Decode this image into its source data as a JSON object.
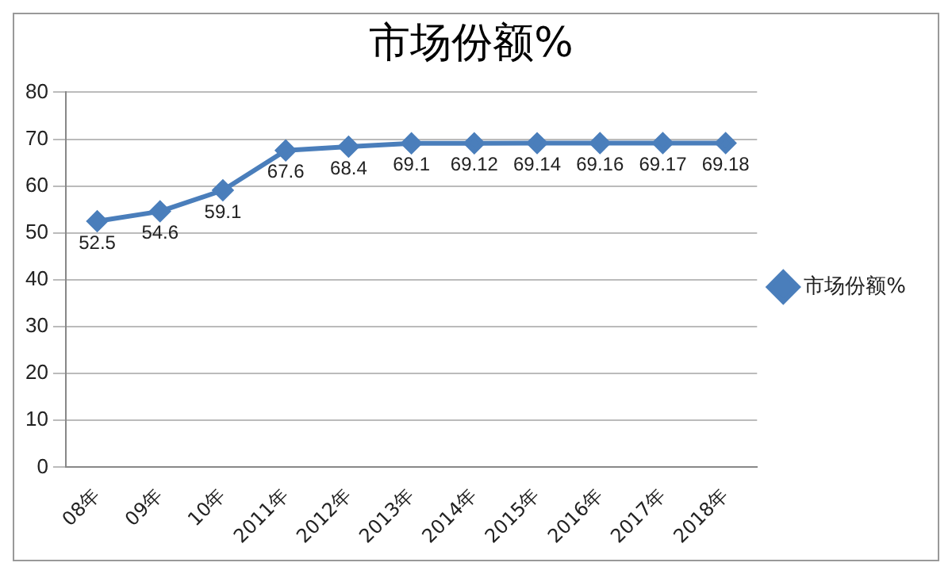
{
  "chart_data": {
    "type": "line",
    "title": "市场份额%",
    "categories": [
      "08年",
      "09年",
      "10年",
      "2011年",
      "2012年",
      "2013年",
      "2014年",
      "2015年",
      "2016年",
      "2017年",
      "2018年"
    ],
    "series": [
      {
        "name": "市场份额%",
        "color": "#4a7ebb",
        "values": [
          52.5,
          54.6,
          59.1,
          67.6,
          68.4,
          69.1,
          69.12,
          69.14,
          69.16,
          69.17,
          69.18
        ]
      }
    ],
    "ylim": [
      0,
      80
    ],
    "yticks": [
      0,
      10,
      20,
      30,
      40,
      50,
      60,
      70,
      80
    ],
    "grid": "y",
    "legend": "right",
    "marker": "diamond",
    "data_labels": true
  }
}
